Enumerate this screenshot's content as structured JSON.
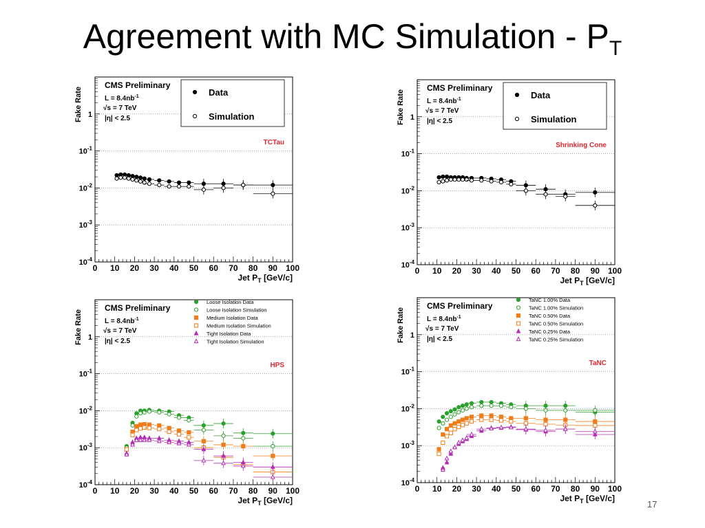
{
  "slide": {
    "title": "Agreement with MC Simulation - P",
    "title_sub": "T",
    "page_number": "17"
  },
  "shared": {
    "y_axis_label": "Fake Rate",
    "x_axis_label": "Jet P",
    "x_axis_label_sub": "T",
    "x_axis_label_unit": "[GeV/c]",
    "cms_label": "CMS Preliminary",
    "lumi_label": "L = 8.4nb",
    "lumi_sup": "-1",
    "energy_label": "√s = 7 TeV",
    "eta_label": "|η| < 2.5",
    "x_ticks": [
      "0",
      "10",
      "20",
      "30",
      "40",
      "50",
      "60",
      "70",
      "80",
      "90",
      "100"
    ],
    "y_tick_exponents": [
      "-4",
      "-3",
      "-2",
      "-1"
    ],
    "y_tick_one": "1"
  },
  "chart_data": [
    {
      "type": "scatter",
      "algorithm_label": "TCTau",
      "y_scale": "log",
      "xlim": [
        0,
        100
      ],
      "ylim": [
        0.0001,
        10
      ],
      "grid": "horizontal dotted at decades",
      "legend_placement": "top-center",
      "series": [
        {
          "name": "Data",
          "marker": "filled-circle",
          "color": "#000000",
          "x": [
            11,
            13,
            15,
            17,
            19,
            21,
            23,
            25,
            27.5,
            32.5,
            37.5,
            42.5,
            47.5,
            55,
            65,
            75,
            90
          ],
          "y": [
            0.022,
            0.023,
            0.023,
            0.022,
            0.021,
            0.02,
            0.019,
            0.018,
            0.017,
            0.016,
            0.015,
            0.014,
            0.014,
            0.013,
            0.013,
            0.012,
            0.012
          ]
        },
        {
          "name": "Simulation",
          "marker": "open-circle",
          "color": "#000000",
          "x": [
            11,
            13,
            15,
            17,
            19,
            21,
            23,
            25,
            27.5,
            32.5,
            37.5,
            42.5,
            47.5,
            55,
            65,
            75,
            90
          ],
          "y": [
            0.018,
            0.019,
            0.019,
            0.018,
            0.017,
            0.016,
            0.015,
            0.014,
            0.013,
            0.012,
            0.011,
            0.011,
            0.011,
            0.009,
            0.01,
            0.012,
            0.007
          ]
        }
      ]
    },
    {
      "type": "scatter",
      "algorithm_label": "Shrinking Cone",
      "y_scale": "log",
      "xlim": [
        0,
        100
      ],
      "ylim": [
        0.0001,
        10
      ],
      "grid": "horizontal dotted at decades",
      "legend_placement": "top-center",
      "series": [
        {
          "name": "Data",
          "marker": "filled-circle",
          "color": "#000000",
          "x": [
            11,
            13,
            15,
            17,
            19,
            21,
            23,
            25,
            27.5,
            32.5,
            37.5,
            42.5,
            47.5,
            55,
            65,
            75,
            90
          ],
          "y": [
            0.023,
            0.024,
            0.024,
            0.023,
            0.023,
            0.023,
            0.023,
            0.022,
            0.022,
            0.022,
            0.021,
            0.02,
            0.018,
            0.014,
            0.011,
            0.008,
            0.009
          ]
        },
        {
          "name": "Simulation",
          "marker": "open-circle",
          "color": "#000000",
          "x": [
            11,
            13,
            15,
            17,
            19,
            21,
            23,
            25,
            27.5,
            32.5,
            37.5,
            42.5,
            47.5,
            55,
            65,
            75,
            90
          ],
          "y": [
            0.017,
            0.018,
            0.019,
            0.02,
            0.02,
            0.02,
            0.02,
            0.02,
            0.019,
            0.019,
            0.018,
            0.017,
            0.015,
            0.01,
            0.008,
            0.007,
            0.004
          ]
        }
      ]
    },
    {
      "type": "scatter",
      "algorithm_label": "HPS",
      "y_scale": "log",
      "xlim": [
        0,
        100
      ],
      "ylim": [
        0.0001,
        10
      ],
      "grid": "horizontal dotted at decades",
      "legend_placement": "top-center",
      "series": [
        {
          "name": "Loose Isolation Data",
          "marker": "filled-circle",
          "color": "#2ca02c",
          "x": [
            16,
            19,
            21,
            23,
            25,
            27.5,
            32.5,
            37.5,
            42.5,
            47.5,
            55,
            65,
            75,
            90
          ],
          "y": [
            0.0011,
            0.0047,
            0.0085,
            0.01,
            0.01,
            0.0105,
            0.01,
            0.0095,
            0.0075,
            0.0065,
            0.004,
            0.0045,
            0.0025,
            0.0024
          ]
        },
        {
          "name": "Loose Isolation Simulation",
          "marker": "open-circle",
          "color": "#2ca02c",
          "x": [
            16,
            19,
            21,
            23,
            25,
            27.5,
            32.5,
            37.5,
            42.5,
            47.5,
            55,
            65,
            75,
            90
          ],
          "y": [
            0.001,
            0.004,
            0.007,
            0.0085,
            0.009,
            0.0095,
            0.009,
            0.008,
            0.0065,
            0.0055,
            0.003,
            0.0021,
            0.0018,
            0.0011
          ]
        },
        {
          "name": "Medium Isolation Data",
          "marker": "filled-square",
          "color": "#f07c1a",
          "x": [
            16,
            19,
            21,
            23,
            25,
            27.5,
            32.5,
            37.5,
            42.5,
            47.5,
            55,
            65,
            75,
            90
          ],
          "y": [
            0.0009,
            0.0027,
            0.0038,
            0.0042,
            0.0043,
            0.0042,
            0.004,
            0.0034,
            0.0029,
            0.0026,
            0.0015,
            0.0012,
            0.0011,
            0.0006
          ]
        },
        {
          "name": "Medium Isolation Simulation",
          "marker": "open-square",
          "color": "#f07c1a",
          "x": [
            16,
            19,
            21,
            23,
            25,
            27.5,
            32.5,
            37.5,
            42.5,
            47.5,
            55,
            65,
            75,
            90
          ],
          "y": [
            0.0009,
            0.0022,
            0.003,
            0.0033,
            0.0035,
            0.0034,
            0.0032,
            0.0027,
            0.0023,
            0.0019,
            0.001,
            0.00055,
            0.00035,
            0.00022
          ]
        },
        {
          "name": "Tight Isolation Data",
          "marker": "filled-triangle",
          "color": "#b32db3",
          "x": [
            16,
            19,
            21,
            23,
            25,
            27.5,
            32.5,
            37.5,
            42.5,
            47.5,
            55,
            65,
            75,
            90
          ],
          "y": [
            0.0007,
            0.0014,
            0.0018,
            0.0019,
            0.0019,
            0.0018,
            0.0018,
            0.0016,
            0.0015,
            0.0014,
            0.0009,
            0.0006,
            0.0004,
            0.0003
          ]
        },
        {
          "name": "Tight Isolation Simulation",
          "marker": "open-triangle",
          "color": "#b32db3",
          "x": [
            16,
            19,
            21,
            23,
            25,
            27.5,
            32.5,
            37.5,
            42.5,
            47.5,
            55,
            65,
            75,
            90
          ],
          "y": [
            0.00065,
            0.0012,
            0.0016,
            0.0016,
            0.0016,
            0.0016,
            0.0015,
            0.0014,
            0.0013,
            0.0012,
            0.00045,
            0.00038,
            0.00032,
            0.00016
          ]
        }
      ]
    },
    {
      "type": "scatter",
      "algorithm_label": "TaNC",
      "y_scale": "log",
      "xlim": [
        0,
        100
      ],
      "ylim": [
        0.0001,
        10
      ],
      "grid": "horizontal dotted at decades",
      "legend_placement": "top-center",
      "series": [
        {
          "name": "TaNC 1.00% Data",
          "marker": "filled-circle",
          "color": "#2ca02c",
          "x": [
            11,
            13,
            15,
            17,
            19,
            21,
            23,
            25,
            27.5,
            32.5,
            37.5,
            42.5,
            47.5,
            55,
            65,
            75,
            90
          ],
          "y": [
            0.0045,
            0.006,
            0.0075,
            0.0085,
            0.0095,
            0.011,
            0.012,
            0.013,
            0.014,
            0.015,
            0.015,
            0.014,
            0.013,
            0.012,
            0.012,
            0.012,
            0.008
          ]
        },
        {
          "name": "TaNC 1.00% Simulation",
          "marker": "open-circle",
          "color": "#2ca02c",
          "x": [
            11,
            13,
            15,
            17,
            19,
            21,
            23,
            25,
            27.5,
            32.5,
            37.5,
            42.5,
            47.5,
            55,
            65,
            75,
            90
          ],
          "y": [
            0.003,
            0.004,
            0.005,
            0.006,
            0.007,
            0.008,
            0.009,
            0.01,
            0.011,
            0.012,
            0.012,
            0.012,
            0.011,
            0.01,
            0.009,
            0.009,
            0.009
          ]
        },
        {
          "name": "TaNC 0.50% Data",
          "marker": "filled-square",
          "color": "#f07c1a",
          "x": [
            11,
            13,
            15,
            17,
            19,
            21,
            23,
            25,
            27.5,
            32.5,
            37.5,
            42.5,
            47.5,
            55,
            65,
            75,
            90
          ],
          "y": [
            0.0008,
            0.002,
            0.0028,
            0.0035,
            0.004,
            0.0045,
            0.005,
            0.0055,
            0.006,
            0.0065,
            0.0065,
            0.006,
            0.0055,
            0.0055,
            0.005,
            0.005,
            0.0045
          ]
        },
        {
          "name": "TaNC 0.50% Simulation",
          "marker": "open-square",
          "color": "#f07c1a",
          "x": [
            11,
            13,
            15,
            17,
            19,
            21,
            23,
            25,
            27.5,
            32.5,
            37.5,
            42.5,
            47.5,
            55,
            65,
            75,
            90
          ],
          "y": [
            0.0006,
            0.0012,
            0.0018,
            0.0022,
            0.0028,
            0.0032,
            0.0036,
            0.004,
            0.0045,
            0.005,
            0.005,
            0.0048,
            0.0045,
            0.004,
            0.0038,
            0.0036,
            0.0035
          ]
        },
        {
          "name": "TaNC 0.25% Data",
          "marker": "filled-triangle",
          "color": "#b32db3",
          "x": [
            13,
            15,
            17,
            19,
            21,
            23,
            25,
            27.5,
            32.5,
            37.5,
            42.5,
            47.5,
            55,
            65,
            75,
            90
          ],
          "y": [
            0.00025,
            0.00035,
            0.0006,
            0.0009,
            0.0011,
            0.0013,
            0.0015,
            0.0018,
            0.0025,
            0.003,
            0.003,
            0.0032,
            0.0027,
            0.0024,
            0.0028,
            0.002
          ]
        },
        {
          "name": "TaNC 0.25% Simulation",
          "marker": "open-triangle",
          "color": "#b32db3",
          "x": [
            13,
            15,
            17,
            19,
            21,
            23,
            25,
            27.5,
            32.5,
            37.5,
            42.5,
            47.5,
            55,
            65,
            75,
            90
          ],
          "y": [
            0.00022,
            0.00045,
            0.0007,
            0.0009,
            0.0012,
            0.0014,
            0.0016,
            0.002,
            0.0028,
            0.0029,
            0.0031,
            0.0031,
            0.0028,
            0.0026,
            0.0028,
            0.0024
          ]
        }
      ]
    }
  ]
}
